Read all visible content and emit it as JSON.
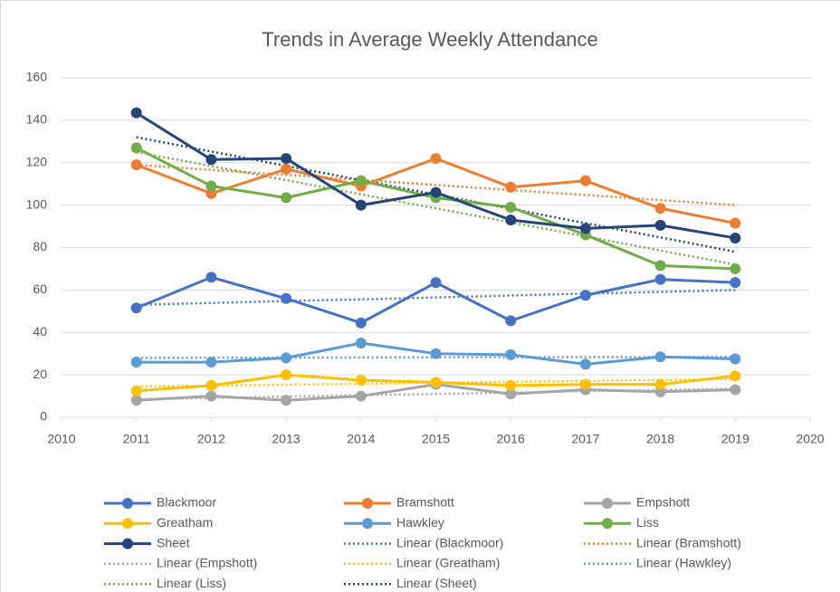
{
  "chart_data": {
    "type": "line",
    "title": "Trends in Average Weekly Attendance",
    "x": [
      2011,
      2012,
      2013,
      2014,
      2015,
      2016,
      2017,
      2018,
      2019
    ],
    "xlim": [
      2010,
      2020
    ],
    "xticks": [
      2010,
      2011,
      2012,
      2013,
      2014,
      2015,
      2016,
      2017,
      2018,
      2019,
      2020
    ],
    "ylim": [
      0,
      160
    ],
    "yticks": [
      0,
      20,
      40,
      60,
      80,
      100,
      120,
      140,
      160
    ],
    "grid": true,
    "legend": "bottom",
    "series": [
      {
        "name": "Blackmoor",
        "color": "#4472c4",
        "values": [
          51.5,
          66,
          56,
          44.5,
          63.5,
          45.5,
          57.5,
          65,
          63.5
        ]
      },
      {
        "name": "Bramshott",
        "color": "#ed7d31",
        "values": [
          119,
          105.5,
          117,
          109,
          122,
          108.5,
          111.5,
          98.5,
          91.5
        ]
      },
      {
        "name": "Empshott",
        "color": "#a5a5a5",
        "values": [
          8,
          10,
          8,
          10,
          15.5,
          11,
          13,
          12,
          13
        ]
      },
      {
        "name": "Greatham",
        "color": "#ffc000",
        "values": [
          12.5,
          15,
          20,
          17.5,
          16.5,
          15,
          15.5,
          15.5,
          19.5
        ]
      },
      {
        "name": "Hawkley",
        "color": "#5b9bd5",
        "values": [
          26,
          26,
          28,
          35,
          30,
          29.5,
          25,
          28.5,
          27.5
        ]
      },
      {
        "name": "Liss",
        "color": "#70ad47",
        "values": [
          127,
          109,
          103.5,
          111.5,
          103.5,
          99,
          86,
          71.5,
          70
        ]
      },
      {
        "name": "Sheet",
        "color": "#264478",
        "values": [
          143.5,
          121.5,
          122,
          100,
          106,
          93,
          89,
          90.5,
          84.5
        ]
      },
      {
        "name": "Linear (Blackmoor)",
        "color": "#4472c4",
        "dash": true,
        "values": [
          53,
          53.9,
          54.8,
          55.6,
          56.5,
          57.4,
          58.3,
          59.1,
          60
        ]
      },
      {
        "name": "Linear (Bramshott)",
        "color": "#ed7d31",
        "dash": true,
        "values": [
          119,
          116.6,
          114.3,
          111.9,
          109.5,
          107.1,
          104.8,
          102.4,
          100
        ]
      },
      {
        "name": "Linear (Empshott)",
        "color": "#a5a5a5",
        "dash": true,
        "values": [
          8.5,
          9.1,
          9.8,
          10.4,
          11,
          11.6,
          12.3,
          12.9,
          13.5
        ]
      },
      {
        "name": "Linear (Greatham)",
        "color": "#ffc000",
        "dash": true,
        "values": [
          14.5,
          14.9,
          15.4,
          15.8,
          16.3,
          16.7,
          17.1,
          17.6,
          18
        ]
      },
      {
        "name": "Linear (Hawkley)",
        "color": "#5b9bd5",
        "dash": true,
        "values": [
          28,
          28.1,
          28.1,
          28.2,
          28.3,
          28.3,
          28.4,
          28.4,
          28.5
        ]
      },
      {
        "name": "Linear (Liss)",
        "color": "#70ad47",
        "dash": true,
        "values": [
          125,
          118.4,
          111.8,
          105.1,
          98.5,
          91.9,
          85.3,
          78.6,
          72
        ]
      },
      {
        "name": "Linear (Sheet)",
        "color": "#264478",
        "dash": true,
        "values": [
          132,
          125.3,
          118.5,
          111.8,
          105,
          98.3,
          91.5,
          84.8,
          78
        ]
      }
    ]
  }
}
